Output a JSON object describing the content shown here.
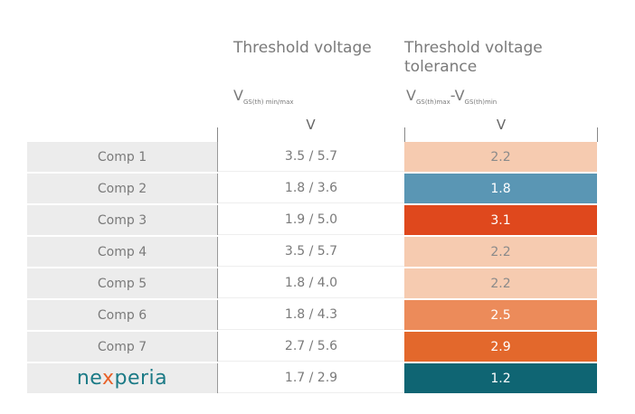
{
  "header": {
    "col2_title": "Threshold voltage",
    "col3_title_line1": "Threshold voltage",
    "col3_title_line2": "tolerance",
    "col2_symbol": "V",
    "col2_symbol_sub": "GS(th) min/max",
    "col3_symbol_a": "V",
    "col3_symbol_a_sub": "GS(th)max",
    "col3_minus": "-",
    "col3_symbol_b": "V",
    "col3_symbol_b_sub": "GS(th)min",
    "col2_unit": "V",
    "col3_unit": "V"
  },
  "rows": [
    {
      "name": "Comp 1",
      "range": "3.5 / 5.7",
      "tolerance": "2.2",
      "color": "#f6cbb0",
      "text_color": "#8a8a8a"
    },
    {
      "name": "Comp 2",
      "range": "1.8 / 3.6",
      "tolerance": "1.8",
      "color": "#5a96b4",
      "text_color": "#ffffff"
    },
    {
      "name": "Comp 3",
      "range": "1.9 / 5.0",
      "tolerance": "3.1",
      "color": "#df481d",
      "text_color": "#ffffff"
    },
    {
      "name": "Comp 4",
      "range": "3.5 / 5.7",
      "tolerance": "2.2",
      "color": "#f6cbb0",
      "text_color": "#8a8a8a"
    },
    {
      "name": "Comp 5",
      "range": "1.8 / 4.0",
      "tolerance": "2.2",
      "color": "#f6cbb0",
      "text_color": "#8a8a8a"
    },
    {
      "name": "Comp 6",
      "range": "1.8 / 4.3",
      "tolerance": "2.5",
      "color": "#ec8b5a",
      "text_color": "#ffffff"
    },
    {
      "name": "Comp 7",
      "range": "2.7 / 5.6",
      "tolerance": "2.9",
      "color": "#e3682c",
      "text_color": "#ffffff"
    },
    {
      "name": "nexperia",
      "range": "1.7 / 2.9",
      "tolerance": "1.2",
      "color": "#0f6573",
      "text_color": "#ffffff"
    }
  ],
  "logo": {
    "pre": "ne",
    "x": "x",
    "post": "peria"
  }
}
